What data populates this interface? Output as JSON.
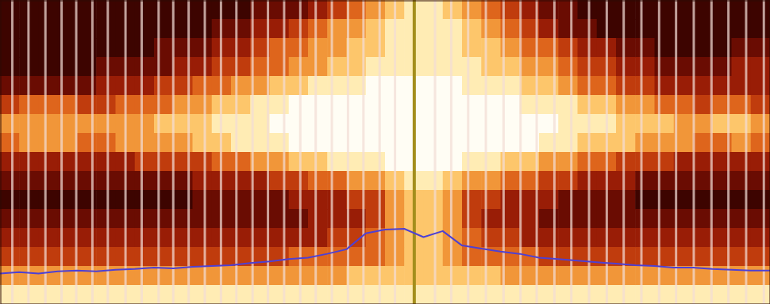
{
  "chart_data": {
    "type": "heatmap",
    "xlim": [
      0,
      100
    ],
    "ylim": [
      0,
      40
    ],
    "zlim": [
      0,
      9
    ],
    "tick_labels": false,
    "grid": false,
    "z": [
      [
        1,
        1,
        1,
        1,
        1,
        1,
        1,
        1,
        1,
        1,
        1,
        1,
        1,
        2,
        2,
        2,
        3,
        4,
        5,
        6,
        7,
        8,
        8,
        7,
        6,
        5,
        4,
        3,
        2,
        2,
        1,
        1,
        1,
        1,
        1,
        1,
        1,
        1,
        1,
        1
      ],
      [
        1,
        1,
        1,
        1,
        1,
        1,
        1,
        1,
        1,
        1,
        1,
        2,
        2,
        3,
        3,
        4,
        5,
        6,
        6,
        7,
        8,
        8,
        8,
        8,
        7,
        6,
        5,
        4,
        3,
        2,
        2,
        1,
        1,
        1,
        1,
        1,
        1,
        1,
        1,
        1
      ],
      [
        1,
        1,
        1,
        1,
        1,
        1,
        1,
        1,
        2,
        2,
        2,
        3,
        3,
        4,
        5,
        5,
        6,
        6,
        7,
        7,
        8,
        8,
        8,
        8,
        7,
        7,
        6,
        5,
        5,
        4,
        3,
        3,
        2,
        2,
        1,
        1,
        1,
        1,
        2,
        2
      ],
      [
        1,
        1,
        1,
        1,
        1,
        2,
        2,
        2,
        2,
        3,
        3,
        4,
        4,
        5,
        5,
        6,
        6,
        7,
        7,
        8,
        8,
        8,
        8,
        8,
        8,
        7,
        7,
        6,
        6,
        5,
        4,
        4,
        3,
        3,
        2,
        2,
        2,
        2,
        3,
        3
      ],
      [
        2,
        2,
        2,
        2,
        2,
        3,
        3,
        3,
        4,
        4,
        5,
        5,
        6,
        6,
        7,
        7,
        8,
        8,
        8,
        9,
        9,
        9,
        9,
        9,
        8,
        8,
        8,
        7,
        7,
        6,
        5,
        5,
        4,
        4,
        3,
        3,
        3,
        3,
        3,
        3
      ],
      [
        4,
        5,
        5,
        5,
        4,
        4,
        5,
        5,
        5,
        6,
        6,
        7,
        7,
        8,
        8,
        9,
        9,
        9,
        9,
        9,
        9,
        9,
        9,
        9,
        9,
        9,
        9,
        8,
        8,
        8,
        7,
        7,
        6,
        6,
        5,
        5,
        4,
        5,
        5,
        4
      ],
      [
        6,
        6,
        6,
        6,
        6,
        6,
        6,
        6,
        7,
        7,
        7,
        8,
        8,
        8,
        9,
        9,
        9,
        9,
        9,
        9,
        9,
        9,
        9,
        9,
        9,
        9,
        9,
        9,
        9,
        8,
        8,
        8,
        7,
        7,
        7,
        6,
        6,
        7,
        7,
        6
      ],
      [
        5,
        6,
        6,
        6,
        5,
        5,
        6,
        6,
        6,
        6,
        7,
        7,
        8,
        8,
        8,
        9,
        9,
        9,
        9,
        9,
        9,
        9,
        9,
        9,
        9,
        9,
        9,
        9,
        8,
        8,
        7,
        7,
        7,
        6,
        6,
        6,
        5,
        5,
        6,
        5
      ],
      [
        3,
        3,
        3,
        3,
        3,
        3,
        3,
        4,
        4,
        4,
        4,
        5,
        5,
        6,
        6,
        7,
        7,
        8,
        8,
        8,
        9,
        9,
        9,
        9,
        8,
        8,
        7,
        7,
        6,
        6,
        5,
        5,
        4,
        4,
        4,
        3,
        3,
        3,
        3,
        3
      ],
      [
        2,
        2,
        2,
        2,
        2,
        2,
        2,
        2,
        2,
        2,
        3,
        3,
        3,
        3,
        4,
        4,
        5,
        5,
        6,
        6,
        7,
        8,
        8,
        7,
        6,
        6,
        5,
        5,
        4,
        4,
        3,
        3,
        3,
        2,
        2,
        2,
        2,
        2,
        2,
        2
      ],
      [
        1,
        1,
        1,
        1,
        1,
        1,
        1,
        1,
        1,
        1,
        2,
        2,
        2,
        2,
        2,
        3,
        3,
        3,
        4,
        4,
        6,
        7,
        7,
        6,
        4,
        4,
        3,
        3,
        3,
        2,
        2,
        2,
        2,
        1,
        1,
        1,
        1,
        1,
        1,
        1
      ],
      [
        2,
        2,
        2,
        2,
        2,
        2,
        2,
        2,
        2,
        2,
        2,
        2,
        2,
        2,
        2,
        2,
        3,
        3,
        3,
        4,
        6,
        7,
        7,
        6,
        4,
        3,
        3,
        3,
        2,
        2,
        2,
        2,
        2,
        2,
        2,
        2,
        2,
        2,
        2,
        2
      ],
      [
        3,
        3,
        3,
        3,
        3,
        3,
        3,
        3,
        3,
        3,
        3,
        3,
        3,
        3,
        3,
        3,
        3,
        4,
        4,
        5,
        6,
        7,
        7,
        6,
        5,
        4,
        4,
        3,
        3,
        3,
        3,
        3,
        3,
        3,
        3,
        3,
        3,
        3,
        3,
        3
      ],
      [
        4,
        4,
        4,
        4,
        4,
        4,
        4,
        4,
        4,
        4,
        4,
        4,
        4,
        4,
        4,
        5,
        5,
        5,
        5,
        5,
        6,
        7,
        7,
        6,
        5,
        5,
        5,
        5,
        4,
        4,
        4,
        4,
        4,
        4,
        4,
        4,
        4,
        4,
        4,
        4
      ],
      [
        6,
        6,
        6,
        6,
        6,
        6,
        6,
        6,
        6,
        6,
        6,
        6,
        6,
        6,
        6,
        6,
        6,
        6,
        7,
        7,
        7,
        7,
        7,
        7,
        7,
        7,
        6,
        6,
        6,
        6,
        6,
        6,
        6,
        6,
        6,
        6,
        6,
        6,
        6,
        6
      ],
      [
        8,
        8,
        8,
        8,
        8,
        8,
        8,
        8,
        8,
        8,
        8,
        8,
        8,
        8,
        8,
        8,
        8,
        8,
        8,
        8,
        8,
        8,
        8,
        8,
        8,
        8,
        8,
        8,
        8,
        8,
        8,
        8,
        8,
        8,
        8,
        8,
        8,
        8,
        8,
        8
      ]
    ],
    "series": [
      {
        "type": "vline",
        "color": "#f3ddd6",
        "x": [
          1.6,
          3.7,
          5.9,
          8.0,
          9.9,
          12.0,
          14.0,
          16.3,
          18.4,
          20.6,
          22.5,
          24.5,
          26.6,
          28.7,
          30.7,
          32.8,
          34.8,
          36.9,
          39.0,
          41.0,
          43.1,
          45.2,
          47.2,
          49.3,
          51.3,
          56.5,
          58.6,
          60.8,
          63.1,
          65.4,
          67.6,
          69.7,
          72.0,
          74.2,
          76.5,
          78.8,
          81.0,
          83.3,
          85.6,
          87.8,
          90.1,
          92.4,
          94.6,
          96.9,
          99.2
        ]
      },
      {
        "type": "vline",
        "color": "#a48e1c",
        "x": [
          53.8
        ]
      },
      {
        "type": "line",
        "color": "#4d40d4",
        "x": [
          0,
          2.5,
          5,
          7.5,
          10,
          12.5,
          15,
          17.5,
          20,
          22.5,
          25,
          27.5,
          30,
          32.5,
          35,
          37.5,
          40,
          42.5,
          45,
          47.5,
          50,
          52.5,
          55,
          57.5,
          60,
          62.5,
          65,
          67.5,
          70,
          72.5,
          75,
          77.5,
          80,
          82.5,
          85,
          87.5,
          90,
          92.5,
          95,
          97.5,
          100
        ],
        "values": [
          4.0,
          4.2,
          4.0,
          4.3,
          4.4,
          4.3,
          4.5,
          4.6,
          4.8,
          4.7,
          4.9,
          5.0,
          5.1,
          5.4,
          5.6,
          5.9,
          6.1,
          6.6,
          7.2,
          9.3,
          9.8,
          9.9,
          8.8,
          9.6,
          7.7,
          7.3,
          6.9,
          6.6,
          6.1,
          5.9,
          5.7,
          5.5,
          5.3,
          5.1,
          5.0,
          4.8,
          4.8,
          4.6,
          4.5,
          4.4,
          4.4
        ]
      }
    ]
  }
}
